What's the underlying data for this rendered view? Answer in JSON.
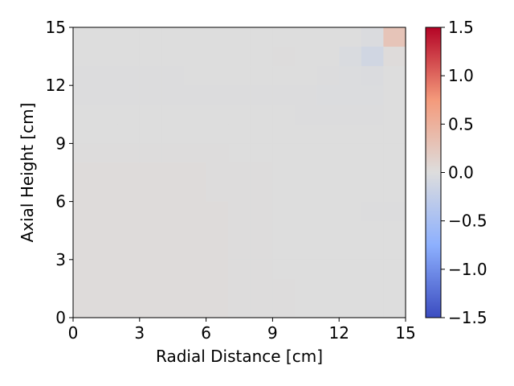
{
  "chart_data": {
    "type": "heatmap",
    "title": "",
    "xlabel": "Radial Distance [cm]",
    "ylabel": "Axial Height [cm]",
    "xlim": [
      0,
      15
    ],
    "ylim": [
      0,
      15
    ],
    "xticks": [
      "0",
      "3",
      "6",
      "9",
      "12",
      "15"
    ],
    "yticks": [
      "0",
      "3",
      "6",
      "9",
      "12",
      "15"
    ],
    "grid": false,
    "colormap": "coolwarm",
    "colormap_colors": [
      "#3b4cc0",
      "#8db0fe",
      "#dddddd",
      "#f49a7b",
      "#b40426"
    ],
    "colorbar": {
      "vmin": -1.5,
      "vmax": 1.5,
      "ticks": [
        "−1.5",
        "−1.0",
        "−0.5",
        "0.0",
        "0.5",
        "1.0",
        "1.5"
      ],
      "tick_values": [
        -1.5,
        -1.0,
        -0.5,
        0.0,
        0.5,
        1.0,
        1.5
      ]
    },
    "grid_size": [
      15,
      15
    ],
    "z_rows_top_to_bottom": [
      [
        0.0,
        0.0,
        0.0,
        0.0,
        0.0,
        0.0,
        0.0,
        0.0,
        0.0,
        0.0,
        0.0,
        0.0,
        0.0,
        -0.03,
        0.28
      ],
      [
        0.0,
        0.0,
        0.0,
        0.0,
        0.0,
        0.0,
        0.0,
        0.0,
        0.0,
        0.01,
        0.0,
        0.0,
        -0.04,
        -0.12,
        0.02
      ],
      [
        -0.01,
        -0.01,
        -0.01,
        -0.01,
        -0.01,
        0.0,
        0.0,
        0.0,
        0.0,
        0.0,
        0.0,
        -0.01,
        -0.02,
        -0.03,
        0.0
      ],
      [
        -0.01,
        -0.01,
        -0.01,
        -0.01,
        -0.01,
        -0.01,
        -0.01,
        -0.01,
        -0.01,
        -0.01,
        -0.01,
        -0.02,
        -0.02,
        -0.02,
        0.0
      ],
      [
        0.0,
        0.0,
        0.0,
        0.0,
        0.0,
        0.0,
        0.0,
        0.0,
        0.0,
        0.0,
        -0.01,
        -0.01,
        -0.01,
        -0.01,
        0.0
      ],
      [
        0.0,
        0.0,
        0.0,
        0.0,
        0.0,
        0.0,
        0.0,
        0.0,
        0.0,
        0.0,
        0.0,
        0.0,
        0.0,
        0.0,
        0.0
      ],
      [
        0.01,
        0.01,
        0.01,
        0.01,
        0.01,
        0.01,
        0.01,
        0.0,
        0.0,
        0.0,
        0.0,
        0.0,
        0.0,
        0.0,
        0.0
      ],
      [
        0.02,
        0.02,
        0.02,
        0.02,
        0.02,
        0.02,
        0.01,
        0.01,
        0.01,
        0.0,
        0.0,
        0.0,
        0.0,
        0.0,
        0.0
      ],
      [
        0.02,
        0.02,
        0.02,
        0.02,
        0.02,
        0.02,
        0.01,
        0.01,
        0.01,
        0.0,
        0.0,
        0.0,
        0.0,
        0.0,
        0.0
      ],
      [
        0.02,
        0.02,
        0.02,
        0.02,
        0.02,
        0.02,
        0.02,
        0.01,
        0.01,
        0.0,
        0.0,
        0.0,
        0.0,
        -0.01,
        -0.01
      ],
      [
        0.02,
        0.02,
        0.02,
        0.02,
        0.02,
        0.02,
        0.02,
        0.01,
        0.01,
        0.0,
        0.0,
        0.0,
        0.0,
        0.0,
        0.0
      ],
      [
        0.02,
        0.02,
        0.02,
        0.02,
        0.02,
        0.02,
        0.02,
        0.01,
        0.01,
        0.0,
        0.0,
        0.0,
        0.0,
        0.0,
        0.0
      ],
      [
        0.02,
        0.02,
        0.02,
        0.02,
        0.02,
        0.02,
        0.02,
        0.01,
        0.01,
        0.0,
        0.0,
        0.0,
        0.0,
        0.0,
        0.0
      ],
      [
        0.02,
        0.02,
        0.02,
        0.02,
        0.02,
        0.02,
        0.02,
        0.01,
        0.01,
        0.01,
        0.0,
        0.0,
        0.0,
        0.0,
        0.0
      ],
      [
        0.02,
        0.02,
        0.02,
        0.02,
        0.02,
        0.02,
        0.02,
        0.01,
        0.01,
        0.01,
        0.0,
        0.0,
        0.0,
        0.0,
        0.0
      ]
    ]
  }
}
